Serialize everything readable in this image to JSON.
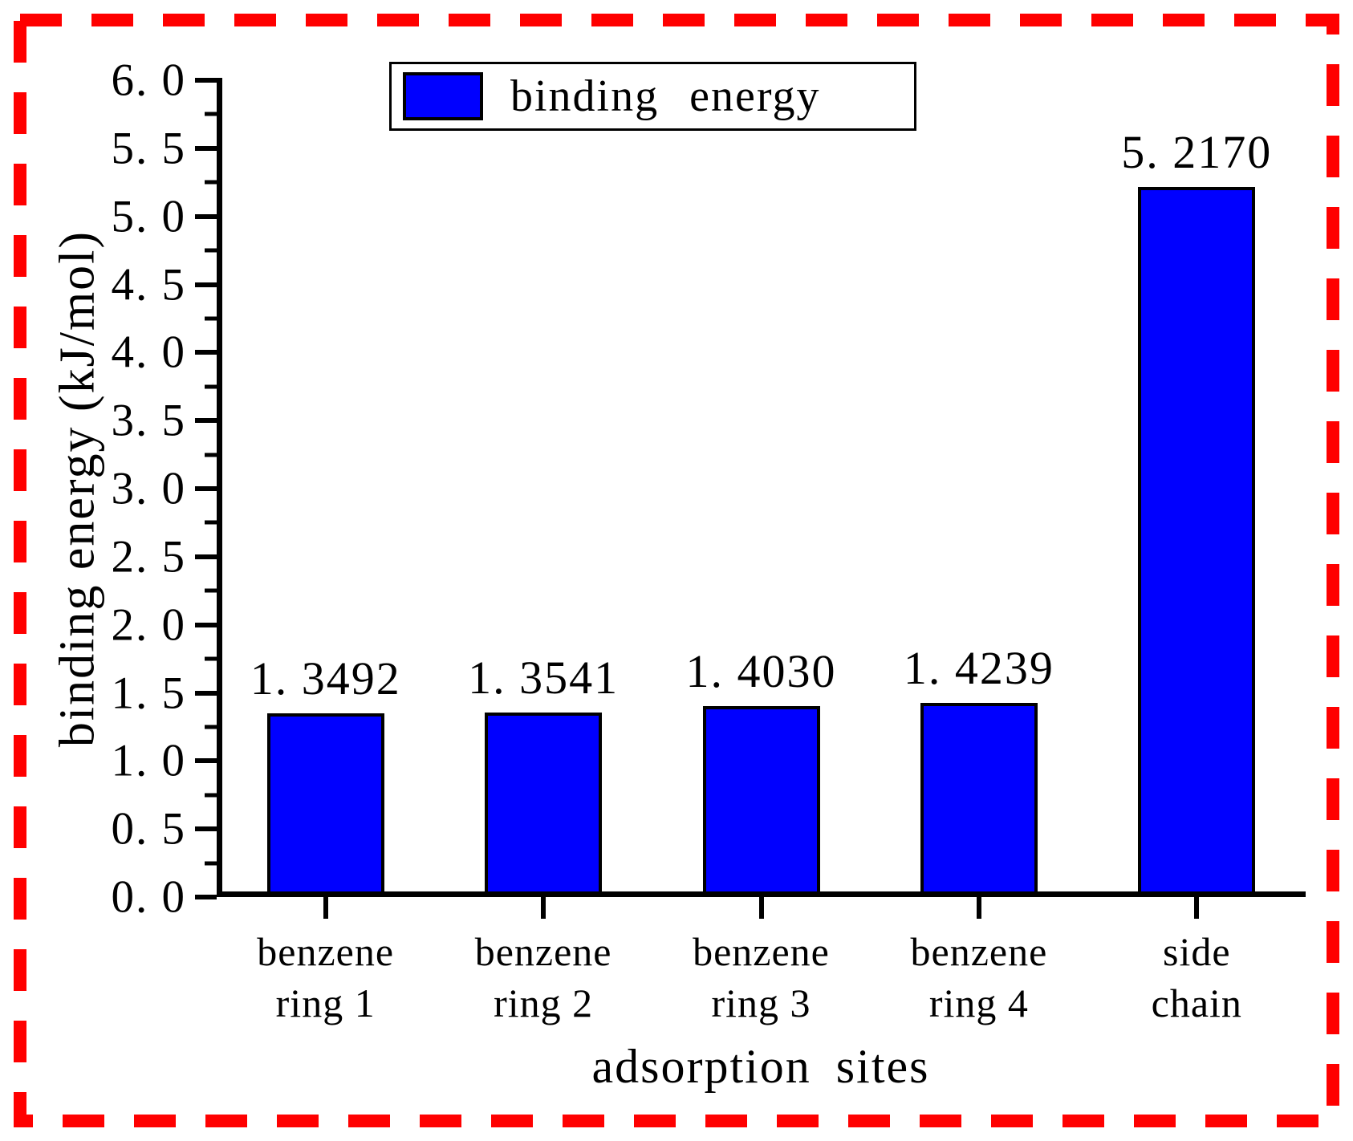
{
  "colors": {
    "frame": "#FF0000",
    "bar_fill": "#0000FF",
    "bar_edge": "#000000",
    "axis": "#000000",
    "background": "#FFFFFF"
  },
  "legend": {
    "entries": [
      {
        "label": "binding energy",
        "swatch_color": "#0000FF"
      }
    ],
    "position": "upper center"
  },
  "chart_data": {
    "type": "bar",
    "title": "",
    "xlabel": "adsorption sites",
    "ylabel": "binding energy (kJ/mol)",
    "categories": [
      "benzene ring 1",
      "benzene ring 2",
      "benzene ring 3",
      "benzene ring 4",
      "side chain"
    ],
    "category_display_lines": [
      [
        "benzene",
        "ring 1"
      ],
      [
        "benzene",
        "ring 2"
      ],
      [
        "benzene",
        "ring 3"
      ],
      [
        "benzene",
        "ring 4"
      ],
      [
        "side",
        "chain"
      ]
    ],
    "series": [
      {
        "name": "binding energy",
        "values": [
          1.3492,
          1.3541,
          1.403,
          1.4239,
          5.217
        ]
      }
    ],
    "value_labels": [
      "1. 3492",
      "1. 3541",
      "1. 4030",
      "1. 4239",
      "5. 2170"
    ],
    "ylim": [
      0.0,
      6.0
    ],
    "y_major_step": 0.5,
    "y_minor_step": 0.25,
    "y_tick_labels": [
      "0. 0",
      "0. 5",
      "1. 0",
      "1. 5",
      "2. 0",
      "2. 5",
      "3. 0",
      "3. 5",
      "4. 0",
      "4. 5",
      "5. 0",
      "5. 5",
      "6. 0"
    ],
    "grid": false,
    "legend_position": "upper center",
    "bar_color": "#0000FF",
    "bar_edge_color": "#000000"
  }
}
